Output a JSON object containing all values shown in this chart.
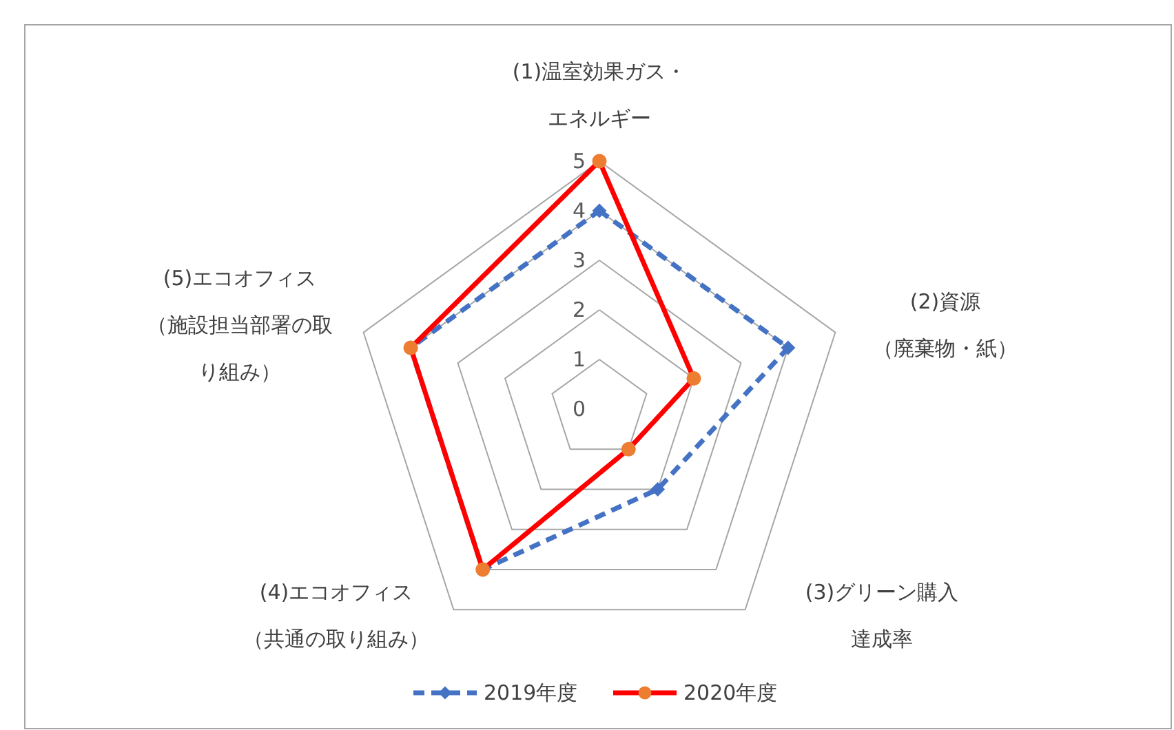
{
  "chart_data": {
    "type": "radar",
    "categories": [
      "(1)温室効果ガス・エネルギー",
      "(2)資源（廃棄物・紙）",
      "(3)グリーン購入達成率",
      "(4)エコオフィス（共通の取り組み）",
      "(5)エコオフィス（施設担当部署の取り組み）"
    ],
    "series": [
      {
        "name": "2019年度",
        "color": "#4472c4",
        "marker": "diamond",
        "line_style": "dashed",
        "values": [
          4,
          4,
          2,
          4,
          4
        ]
      },
      {
        "name": "2020年度",
        "color": "#ff0000",
        "colors": [
          "#ed7d31",
          "#ed7d31",
          "#ed7d31",
          "#ed7d31",
          "#ed7d31"
        ],
        "marker": "circle",
        "line_style": "solid",
        "values": [
          5,
          2,
          1,
          4,
          4
        ]
      }
    ],
    "ylim": [
      0,
      5
    ],
    "yticks": [
      0,
      1,
      2,
      3,
      4,
      5
    ],
    "grid": true,
    "legend": "bottom"
  }
}
